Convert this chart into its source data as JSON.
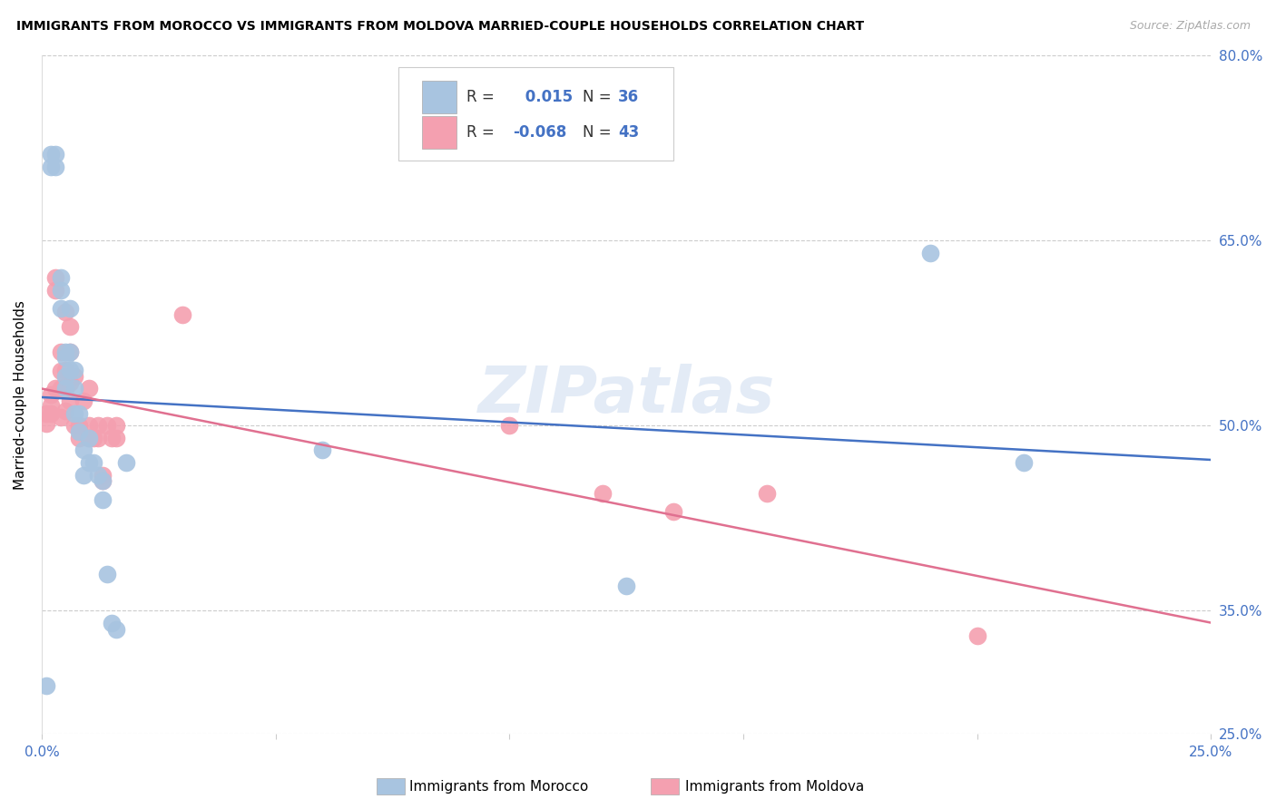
{
  "title": "IMMIGRANTS FROM MOROCCO VS IMMIGRANTS FROM MOLDOVA MARRIED-COUPLE HOUSEHOLDS CORRELATION CHART",
  "source": "Source: ZipAtlas.com",
  "ylabel": "Married-couple Households",
  "xlim": [
    0.0,
    0.25
  ],
  "ylim": [
    0.25,
    0.8
  ],
  "ytick_vals": [
    0.25,
    0.35,
    0.5,
    0.65,
    0.8
  ],
  "ytick_labels": [
    "25.0%",
    "35.0%",
    "50.0%",
    "65.0%",
    "80.0%"
  ],
  "xtick_vals": [
    0.0,
    0.05,
    0.1,
    0.15,
    0.2,
    0.25
  ],
  "xtick_labels": [
    "0.0%",
    "",
    "",
    "",
    "",
    "25.0%"
  ],
  "morocco_R": 0.015,
  "morocco_N": 36,
  "moldova_R": -0.068,
  "moldova_N": 43,
  "morocco_color": "#a8c4e0",
  "moldova_color": "#f4a0b0",
  "morocco_line_color": "#4472c4",
  "moldova_line_color": "#e07090",
  "label_color": "#4472c4",
  "watermark": "ZIPatlas",
  "morocco_x": [
    0.001,
    0.002,
    0.002,
    0.003,
    0.003,
    0.004,
    0.004,
    0.004,
    0.005,
    0.005,
    0.005,
    0.005,
    0.006,
    0.006,
    0.006,
    0.007,
    0.007,
    0.007,
    0.008,
    0.008,
    0.009,
    0.009,
    0.01,
    0.01,
    0.011,
    0.012,
    0.013,
    0.013,
    0.014,
    0.015,
    0.016,
    0.018,
    0.06,
    0.125,
    0.19,
    0.21
  ],
  "morocco_y": [
    0.289,
    0.71,
    0.72,
    0.71,
    0.72,
    0.62,
    0.61,
    0.595,
    0.56,
    0.555,
    0.54,
    0.53,
    0.595,
    0.56,
    0.545,
    0.545,
    0.53,
    0.51,
    0.51,
    0.495,
    0.48,
    0.46,
    0.49,
    0.47,
    0.47,
    0.46,
    0.455,
    0.44,
    0.38,
    0.34,
    0.335,
    0.47,
    0.48,
    0.37,
    0.64,
    0.47
  ],
  "moldova_x": [
    0.001,
    0.001,
    0.002,
    0.002,
    0.002,
    0.003,
    0.003,
    0.003,
    0.004,
    0.004,
    0.004,
    0.004,
    0.005,
    0.005,
    0.005,
    0.005,
    0.006,
    0.006,
    0.006,
    0.006,
    0.007,
    0.007,
    0.008,
    0.008,
    0.009,
    0.01,
    0.01,
    0.01,
    0.011,
    0.012,
    0.012,
    0.013,
    0.013,
    0.014,
    0.015,
    0.016,
    0.016,
    0.03,
    0.1,
    0.12,
    0.135,
    0.155,
    0.2
  ],
  "moldova_y": [
    0.502,
    0.51,
    0.51,
    0.516,
    0.525,
    0.62,
    0.61,
    0.53,
    0.53,
    0.544,
    0.56,
    0.507,
    0.592,
    0.545,
    0.53,
    0.512,
    0.58,
    0.56,
    0.535,
    0.52,
    0.54,
    0.5,
    0.5,
    0.49,
    0.52,
    0.53,
    0.5,
    0.49,
    0.49,
    0.5,
    0.49,
    0.455,
    0.46,
    0.5,
    0.49,
    0.5,
    0.49,
    0.59,
    0.5,
    0.445,
    0.43,
    0.445,
    0.33
  ]
}
